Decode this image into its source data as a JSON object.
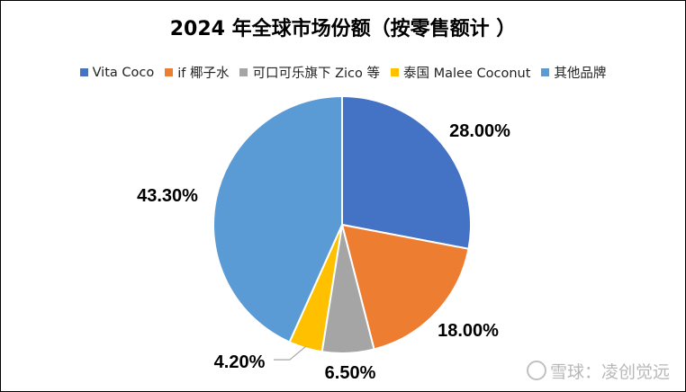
{
  "chart_data": {
    "type": "pie",
    "title": "2024 年全球市场份额（按零售额计 ）",
    "slices": [
      {
        "label": "Vita Coco",
        "value": 28.0,
        "display": "28.00%",
        "color": "#4472C4"
      },
      {
        "label": "if 椰子水",
        "value": 18.0,
        "display": "18.00%",
        "color": "#ED7D31"
      },
      {
        "label": "可口可乐旗下 Zico 等",
        "value": 6.5,
        "display": "6.50%",
        "color": "#A5A5A5"
      },
      {
        "label": "泰国 Malee Coconut",
        "value": 4.2,
        "display": "4.20%",
        "color": "#FFC000"
      },
      {
        "label": "其他品牌",
        "value": 43.3,
        "display": "43.30%",
        "color": "#5B9BD5"
      }
    ],
    "legend_position": "top"
  },
  "watermark": {
    "text": "雪球：凌创觉远"
  }
}
